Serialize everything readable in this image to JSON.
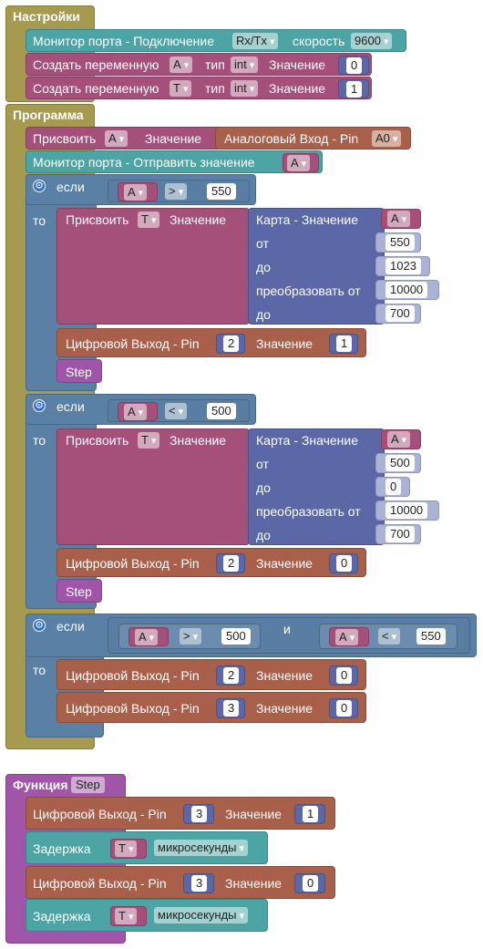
{
  "setup": {
    "title": "Настройки",
    "serial_label": "Монитор порта - Подключение",
    "serial_port": "Rx/Tx",
    "speed_label": "скорость",
    "speed_value": "9600",
    "var1": {
      "create": "Создать переменную",
      "name": "A",
      "type_label": "тип",
      "type": "int",
      "value_label": "Значение",
      "value": "0"
    },
    "var2": {
      "create": "Создать переменную",
      "name": "T",
      "type_label": "тип",
      "type": "int",
      "value_label": "Значение",
      "value": "1"
    }
  },
  "program": {
    "title": "Программа",
    "assign": {
      "label": "Присвоить",
      "var": "A",
      "value_label": "Значение",
      "analog_label": "Аналоговый Вход - Pin",
      "pin": "A0"
    },
    "serial_send": {
      "label": "Монитор порта - Отправить значение",
      "var": "A"
    },
    "if1": {
      "if_label": "если",
      "then_label": "то",
      "var": "A",
      "op": ">",
      "num": "550",
      "assign_label": "Присвоить",
      "assign_var": "T",
      "value_label": "Значение",
      "map_label": "Карта - Значение",
      "map_var": "A",
      "from_label": "от",
      "from": "550",
      "to_label": "до",
      "to": "1023",
      "conv_label": "преобразовать от",
      "conv": "10000",
      "to2_label": "до",
      "to2": "700",
      "dout_label": "Цифровой Выход - Pin",
      "pin": "2",
      "dvalue_label": "Значение",
      "dvalue": "1",
      "step": "Step"
    },
    "if2": {
      "if_label": "если",
      "then_label": "то",
      "var": "A",
      "op": "<",
      "num": "500",
      "assign_label": "Присвоить",
      "assign_var": "T",
      "value_label": "Значение",
      "map_label": "Карта - Значение",
      "map_var": "A",
      "from_label": "от",
      "from": "500",
      "to_label": "до",
      "to": "0",
      "conv_label": "преобразовать от",
      "conv": "10000",
      "to2_label": "до",
      "to2": "700",
      "dout_label": "Цифровой Выход - Pin",
      "pin": "2",
      "dvalue_label": "Значение",
      "dvalue": "0",
      "step": "Step"
    },
    "if3": {
      "if_label": "если",
      "then_label": "то",
      "var1": "A",
      "op1": ">",
      "num1": "500",
      "and_label": "и",
      "var2": "A",
      "op2": "<",
      "num2": "550",
      "dout1": {
        "label": "Цифровой Выход - Pin",
        "pin": "2",
        "value_label": "Значение",
        "value": "0"
      },
      "dout2": {
        "label": "Цифровой Выход - Pin",
        "pin": "3",
        "value_label": "Значение",
        "value": "0"
      }
    }
  },
  "function": {
    "label": "Функция",
    "name": "Step",
    "dout1": {
      "label": "Цифровой Выход - Pin",
      "pin": "3",
      "value_label": "Значение",
      "value": "1"
    },
    "delay1": {
      "label": "Задержка",
      "var": "T",
      "unit": "микросекунды"
    },
    "dout2": {
      "label": "Цифровой Выход - Pin",
      "pin": "3",
      "value_label": "Значение",
      "value": "0"
    },
    "delay2": {
      "label": "Задержка",
      "var": "T",
      "unit": "микросекунды"
    }
  }
}
